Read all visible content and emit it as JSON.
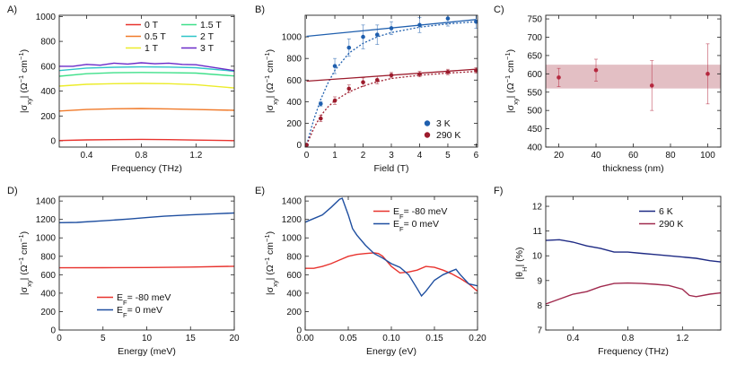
{
  "chart_data": [
    {
      "id": "A",
      "panel_label": "A)",
      "type": "line",
      "title": "",
      "xlabel": "Frequency (THz)",
      "ylabel": "|σxy| (Ω⁻¹ cm⁻¹)",
      "xlim": [
        0.2,
        1.48
      ],
      "ylim": [
        -50,
        1010
      ],
      "xticks": [
        0.4,
        0.8,
        1.2
      ],
      "xtick_labels": [
        "0.4",
        "0.8",
        "1.2"
      ],
      "yticks": [
        0,
        200,
        400,
        600,
        800,
        1000
      ],
      "ytick_labels": [
        "0",
        "200",
        "400",
        "600",
        "800",
        "1000"
      ],
      "legend_position": "top-right",
      "series": [
        {
          "name": "0 T",
          "color": "#e8332e",
          "x": [
            0.2,
            0.4,
            0.6,
            0.8,
            1.0,
            1.2,
            1.48
          ],
          "y": [
            3,
            8,
            10,
            12,
            10,
            6,
            2
          ]
        },
        {
          "name": "0.5 T",
          "color": "#f07a2a",
          "x": [
            0.2,
            0.4,
            0.6,
            0.8,
            1.0,
            1.2,
            1.48
          ],
          "y": [
            240,
            252,
            258,
            260,
            257,
            252,
            246
          ]
        },
        {
          "name": "1 T",
          "color": "#ecec2a",
          "x": [
            0.2,
            0.4,
            0.6,
            0.8,
            1.0,
            1.2,
            1.48
          ],
          "y": [
            440,
            455,
            460,
            462,
            460,
            452,
            425
          ]
        },
        {
          "name": "1.5 T",
          "color": "#3fe08a",
          "x": [
            0.2,
            0.4,
            0.6,
            0.8,
            1.0,
            1.2,
            1.48
          ],
          "y": [
            520,
            540,
            548,
            550,
            548,
            545,
            522
          ]
        },
        {
          "name": "2 T",
          "color": "#2ec5c8",
          "x": [
            0.2,
            0.4,
            0.6,
            0.8,
            1.0,
            1.2,
            1.48
          ],
          "y": [
            565,
            585,
            592,
            595,
            593,
            588,
            560
          ]
        },
        {
          "name": "3 T",
          "color": "#6a2ac8",
          "x": [
            0.2,
            0.3,
            0.4,
            0.5,
            0.6,
            0.7,
            0.8,
            0.9,
            1.0,
            1.1,
            1.2,
            1.3,
            1.48
          ],
          "y": [
            600,
            600,
            615,
            608,
            625,
            618,
            628,
            620,
            625,
            615,
            612,
            595,
            565
          ]
        }
      ]
    },
    {
      "id": "B",
      "panel_label": "B)",
      "type": "scatter",
      "title": "",
      "xlabel": "Field (T)",
      "ylabel": "|σxy| (Ω⁻¹ cm⁻¹)",
      "xlim": [
        -0.05,
        6.05
      ],
      "ylim": [
        -20,
        1200
      ],
      "xticks": [
        0,
        1,
        2,
        3,
        4,
        5,
        6
      ],
      "xtick_labels": [
        "0",
        "1",
        "2",
        "3",
        "4",
        "5",
        "6"
      ],
      "yticks": [
        0,
        200,
        400,
        600,
        800,
        1000
      ],
      "ytick_labels": [
        "0",
        "200",
        "400",
        "600",
        "800",
        "1000"
      ],
      "legend_position": "bottom-right",
      "series": [
        {
          "name": "3 K",
          "color": "#1f5fae",
          "x": [
            0,
            0.5,
            1,
            1.5,
            2,
            2.5,
            3,
            4,
            5,
            6
          ],
          "y": [
            0,
            380,
            730,
            900,
            1000,
            1020,
            1080,
            1110,
            1170,
            1140
          ],
          "err": [
            5,
            20,
            70,
            80,
            110,
            90,
            60,
            70,
            70,
            60
          ],
          "linear_fit": {
            "x": [
              0,
              6
            ],
            "y": [
              1005,
              1160
            ]
          },
          "saturating_fit": {
            "x": [
              0,
              0.25,
              0.5,
              0.75,
              1,
              1.5,
              2,
              2.5,
              3,
              4,
              5,
              6
            ],
            "y": [
              0,
              230,
              420,
              570,
              690,
              850,
              940,
              1000,
              1040,
              1090,
              1120,
              1140
            ]
          }
        },
        {
          "name": "290 K",
          "color": "#9c1b2c",
          "x": [
            0,
            0.5,
            1,
            1.5,
            2,
            2.5,
            3,
            4,
            5,
            6
          ],
          "y": [
            0,
            245,
            410,
            520,
            580,
            600,
            645,
            655,
            675,
            690
          ],
          "err": [
            5,
            30,
            35,
            35,
            40,
            35,
            25,
            25,
            25,
            25
          ],
          "linear_fit": {
            "x": [
              0,
              6
            ],
            "y": [
              590,
              700
            ]
          },
          "saturating_fit": {
            "x": [
              0,
              0.25,
              0.5,
              0.75,
              1,
              1.5,
              2,
              2.5,
              3,
              4,
              5,
              6
            ],
            "y": [
              0,
              150,
              270,
              350,
              410,
              490,
              545,
              585,
              615,
              645,
              665,
              680
            ]
          }
        }
      ]
    },
    {
      "id": "C",
      "panel_label": "C)",
      "type": "scatter",
      "title": "",
      "xlabel": "thickness (nm)",
      "ylabel": "|σxy| (Ω⁻¹ cm⁻¹)",
      "xlim": [
        13,
        107
      ],
      "ylim": [
        400,
        760
      ],
      "xticks": [
        20,
        40,
        60,
        80,
        100
      ],
      "xtick_labels": [
        "20",
        "40",
        "60",
        "80",
        "100"
      ],
      "yticks": [
        400,
        450,
        500,
        550,
        600,
        650,
        700,
        750
      ],
      "ytick_labels": [
        "400",
        "450",
        "500",
        "550",
        "600",
        "650",
        "700",
        "750"
      ],
      "band": {
        "ymin": 560,
        "ymax": 625,
        "color": "#d9a9b0"
      },
      "series": [
        {
          "name": "",
          "color": "#b5283e",
          "x": [
            20,
            40,
            70,
            100
          ],
          "y": [
            590,
            610,
            568,
            600
          ],
          "err": [
            25,
            30,
            68,
            82
          ]
        }
      ]
    },
    {
      "id": "D",
      "panel_label": "D)",
      "type": "line",
      "title": "",
      "xlabel": "Energy (meV)",
      "ylabel": "|σxy| (Ω⁻¹ cm⁻¹)",
      "xlim": [
        0,
        20
      ],
      "ylim": [
        0,
        1450
      ],
      "xticks": [
        0,
        5,
        10,
        15,
        20
      ],
      "xtick_labels": [
        "0",
        "5",
        "10",
        "15",
        "20"
      ],
      "yticks": [
        0,
        200,
        400,
        600,
        800,
        1000,
        1200,
        1400
      ],
      "ytick_labels": [
        "0",
        "200",
        "400",
        "600",
        "800",
        "1000",
        "1200",
        "1400"
      ],
      "legend_position": "bottom-center",
      "series": [
        {
          "name": "E_F = -80 meV",
          "color": "#e8332e",
          "x": [
            0,
            5,
            10,
            15,
            20
          ],
          "y": [
            675,
            676,
            678,
            683,
            692
          ]
        },
        {
          "name": "E_F = 0 meV",
          "color": "#1f4fa0",
          "x": [
            0,
            2,
            5,
            8,
            10,
            12,
            15,
            18,
            20
          ],
          "y": [
            1165,
            1168,
            1185,
            1205,
            1220,
            1235,
            1250,
            1262,
            1270
          ]
        }
      ]
    },
    {
      "id": "E",
      "panel_label": "E)",
      "type": "line",
      "title": "",
      "xlabel": "Energy (eV)",
      "ylabel": "|σxy| (Ω⁻¹ cm⁻¹)",
      "xlim": [
        0,
        0.2
      ],
      "ylim": [
        0,
        1450
      ],
      "xticks": [
        0,
        0.05,
        0.1,
        0.15,
        0.2
      ],
      "xtick_labels": [
        "0.00",
        "0.05",
        "0.10",
        "0.15",
        "0.20"
      ],
      "yticks": [
        0,
        200,
        400,
        600,
        800,
        1000,
        1200,
        1400
      ],
      "ytick_labels": [
        "0",
        "200",
        "400",
        "600",
        "800",
        "1000",
        "1200",
        "1400"
      ],
      "legend_position": "top-right",
      "series": [
        {
          "name": "E_F = -80 meV",
          "color": "#e8332e",
          "x": [
            0,
            0.01,
            0.02,
            0.03,
            0.04,
            0.05,
            0.06,
            0.07,
            0.08,
            0.085,
            0.09,
            0.1,
            0.11,
            0.12,
            0.13,
            0.14,
            0.15,
            0.16,
            0.17,
            0.18,
            0.19,
            0.2
          ],
          "y": [
            670,
            670,
            690,
            720,
            760,
            800,
            820,
            830,
            838,
            830,
            800,
            690,
            620,
            630,
            650,
            690,
            680,
            650,
            610,
            560,
            500,
            420
          ]
        },
        {
          "name": "E_F = 0 meV",
          "color": "#1f4fa0",
          "x": [
            0,
            0.005,
            0.01,
            0.02,
            0.03,
            0.04,
            0.043,
            0.05,
            0.055,
            0.06,
            0.07,
            0.08,
            0.09,
            0.1,
            0.11,
            0.12,
            0.13,
            0.135,
            0.14,
            0.15,
            0.16,
            0.17,
            0.175,
            0.18,
            0.19,
            0.2
          ],
          "y": [
            1170,
            1190,
            1210,
            1250,
            1330,
            1420,
            1430,
            1250,
            1100,
            1030,
            920,
            830,
            780,
            720,
            680,
            600,
            450,
            370,
            420,
            540,
            600,
            640,
            660,
            600,
            500,
            480
          ]
        }
      ]
    },
    {
      "id": "F",
      "panel_label": "F)",
      "type": "line",
      "title": "",
      "xlabel": "Frequency (THz)",
      "ylabel": "|θH| (%)",
      "xlim": [
        0.2,
        1.48
      ],
      "ylim": [
        7,
        12.4
      ],
      "xticks": [
        0.4,
        0.8,
        1.2
      ],
      "xtick_labels": [
        "0.4",
        "0.8",
        "1.2"
      ],
      "yticks": [
        7,
        8,
        9,
        10,
        11,
        12
      ],
      "ytick_labels": [
        "7",
        "8",
        "9",
        "10",
        "11",
        "12"
      ],
      "legend_position": "top-right",
      "series": [
        {
          "name": "6 K",
          "color": "#1e2a84",
          "x": [
            0.2,
            0.3,
            0.4,
            0.5,
            0.6,
            0.7,
            0.8,
            0.9,
            1.0,
            1.1,
            1.2,
            1.3,
            1.4,
            1.48
          ],
          "y": [
            10.62,
            10.65,
            10.55,
            10.4,
            10.3,
            10.15,
            10.15,
            10.1,
            10.05,
            10.0,
            9.95,
            9.9,
            9.8,
            9.75
          ]
        },
        {
          "name": "290 K",
          "color": "#a02a4e",
          "x": [
            0.2,
            0.3,
            0.4,
            0.5,
            0.6,
            0.7,
            0.8,
            0.9,
            1.0,
            1.1,
            1.2,
            1.25,
            1.3,
            1.4,
            1.48
          ],
          "y": [
            8.05,
            8.25,
            8.45,
            8.55,
            8.75,
            8.88,
            8.9,
            8.88,
            8.85,
            8.8,
            8.65,
            8.4,
            8.35,
            8.45,
            8.5
          ]
        }
      ]
    }
  ]
}
